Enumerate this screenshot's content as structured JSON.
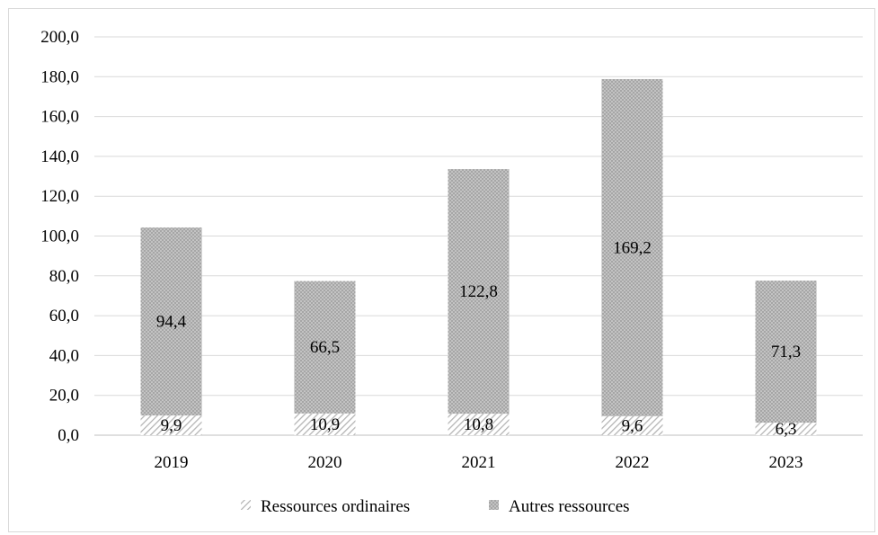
{
  "chart_data": {
    "type": "bar",
    "stacked": true,
    "categories": [
      "2019",
      "2020",
      "2021",
      "2022",
      "2023"
    ],
    "series": [
      {
        "name": "Ressources ordinaires",
        "values": [
          9.9,
          10.9,
          10.8,
          9.6,
          6.3
        ],
        "labels": [
          "9,9",
          "10,9",
          "10,8",
          "9,6",
          "6,3"
        ],
        "pattern": "diagonal-hatch"
      },
      {
        "name": "Autres ressources",
        "values": [
          94.4,
          66.5,
          122.8,
          169.2,
          71.3
        ],
        "labels": [
          "94,4",
          "66,5",
          "122,8",
          "169,2",
          "71,3"
        ],
        "pattern": "dotted"
      }
    ],
    "ylim": [
      0,
      200
    ],
    "yticks": [
      "0,0",
      "20,0",
      "40,0",
      "60,0",
      "80,0",
      "100,0",
      "120,0",
      "140,0",
      "160,0",
      "180,0",
      "200,0"
    ],
    "grid": true,
    "legend_position": "bottom",
    "colors": {
      "bar": "#a6a6a6",
      "gridline": "#d9d9d9",
      "text": "#000000"
    }
  }
}
